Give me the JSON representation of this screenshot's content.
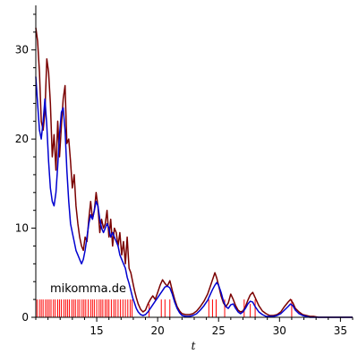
{
  "chart_data": {
    "type": "line",
    "title": "",
    "xlabel": "t",
    "ylabel": "",
    "xlim": [
      10,
      36
    ],
    "ylim": [
      0,
      35
    ],
    "x_ticks": [
      15,
      20,
      25,
      30,
      35
    ],
    "y_ticks": [
      0,
      10,
      20,
      30
    ],
    "grid": false,
    "watermark": "mikomma.de",
    "colors": {
      "dark_red": "#7a0000",
      "blue": "#0000d0",
      "spikes": "#ff0000"
    },
    "series": [
      {
        "color": "#7a0000",
        "x": [
          10.0,
          10.15,
          10.3,
          10.45,
          10.6,
          10.75,
          10.9,
          11.05,
          11.2,
          11.35,
          11.5,
          11.65,
          11.8,
          11.95,
          12.1,
          12.25,
          12.4,
          12.55,
          12.7,
          12.85,
          13.0,
          13.15,
          13.3,
          13.45,
          13.6,
          13.75,
          13.9,
          14.05,
          14.2,
          14.35,
          14.5,
          14.65,
          14.8,
          14.95,
          15.1,
          15.25,
          15.4,
          15.55,
          15.7,
          15.85,
          16.0,
          16.15,
          16.3,
          16.45,
          16.6,
          16.75,
          16.9,
          17.05,
          17.2,
          17.35,
          17.5,
          17.65,
          17.8,
          17.95,
          18.1,
          18.25,
          18.4,
          18.6,
          18.8,
          19.0,
          19.2,
          19.4,
          19.6,
          19.8,
          20.0,
          20.2,
          20.4,
          20.6,
          20.8,
          21.0,
          21.2,
          21.4,
          21.6,
          21.8,
          22.0,
          22.3,
          22.6,
          22.9,
          23.2,
          23.5,
          23.8,
          24.1,
          24.3,
          24.5,
          24.7,
          24.85,
          25.0,
          25.2,
          25.4,
          25.6,
          25.8,
          26.0,
          26.2,
          26.4,
          26.6,
          26.8,
          27.0,
          27.2,
          27.4,
          27.6,
          27.8,
          28.0,
          28.3,
          28.6,
          28.9,
          29.2,
          29.5,
          29.8,
          30.1,
          30.4,
          30.7,
          30.9,
          31.1,
          31.3,
          31.6,
          31.9,
          32.2,
          32.5,
          32.8,
          33.2,
          33.6,
          34.0,
          34.5,
          35.0,
          35.5,
          36.0
        ],
        "y": [
          32.5,
          31.0,
          27.5,
          22.0,
          21.0,
          23.0,
          29.0,
          27.5,
          24.0,
          18.0,
          20.5,
          16.5,
          22.0,
          18.0,
          21.5,
          24.5,
          26.0,
          19.5,
          20.0,
          17.5,
          14.5,
          16.0,
          12.5,
          10.5,
          9.0,
          8.0,
          7.5,
          9.0,
          8.5,
          11.0,
          13.0,
          11.0,
          12.0,
          14.0,
          12.5,
          9.5,
          11.0,
          10.0,
          10.5,
          12.0,
          9.0,
          11.0,
          8.0,
          10.0,
          9.5,
          8.0,
          9.5,
          7.0,
          8.5,
          6.0,
          9.0,
          5.5,
          5.0,
          4.0,
          3.0,
          2.2,
          1.5,
          0.9,
          0.6,
          0.8,
          1.5,
          2.0,
          2.4,
          2.0,
          2.8,
          3.6,
          4.2,
          3.8,
          3.5,
          4.1,
          3.0,
          2.0,
          1.2,
          0.7,
          0.4,
          0.3,
          0.3,
          0.4,
          0.7,
          1.2,
          1.8,
          2.6,
          3.4,
          4.2,
          5.0,
          4.4,
          3.6,
          2.4,
          1.6,
          1.2,
          1.6,
          2.6,
          2.0,
          1.3,
          0.8,
          0.6,
          0.7,
          1.2,
          1.9,
          2.5,
          2.8,
          2.2,
          1.3,
          0.7,
          0.4,
          0.2,
          0.2,
          0.3,
          0.6,
          1.2,
          1.7,
          2.0,
          1.6,
          1.0,
          0.6,
          0.3,
          0.2,
          0.1,
          0.1,
          0.0,
          0.0,
          0.0,
          0.0,
          0.0,
          0.0,
          0.0
        ]
      },
      {
        "color": "#0000d0",
        "x": [
          10.0,
          10.15,
          10.3,
          10.45,
          10.6,
          10.75,
          10.9,
          11.05,
          11.2,
          11.35,
          11.5,
          11.65,
          11.8,
          11.95,
          12.1,
          12.25,
          12.4,
          12.55,
          12.7,
          12.85,
          13.0,
          13.15,
          13.3,
          13.45,
          13.6,
          13.75,
          13.9,
          14.05,
          14.2,
          14.35,
          14.5,
          14.65,
          14.8,
          14.95,
          15.1,
          15.25,
          15.4,
          15.55,
          15.7,
          15.85,
          16.0,
          16.15,
          16.3,
          16.45,
          16.6,
          16.75,
          16.9,
          17.05,
          17.2,
          17.35,
          17.5,
          17.65,
          17.8,
          17.95,
          18.1,
          18.25,
          18.4,
          18.6,
          18.8,
          19.0,
          19.2,
          19.4,
          19.6,
          19.8,
          20.0,
          20.2,
          20.4,
          20.6,
          20.8,
          21.0,
          21.2,
          21.4,
          21.6,
          21.8,
          22.0,
          22.3,
          22.6,
          22.9,
          23.2,
          23.5,
          23.8,
          24.1,
          24.3,
          24.5,
          24.7,
          24.85,
          25.0,
          25.2,
          25.4,
          25.6,
          25.8,
          26.0,
          26.2,
          26.4,
          26.6,
          26.8,
          27.0,
          27.2,
          27.4,
          27.6,
          27.8,
          28.0,
          28.3,
          28.6,
          28.9,
          29.2,
          29.5,
          29.8,
          30.1,
          30.4,
          30.7,
          30.9,
          31.1,
          31.3,
          31.6,
          31.9,
          32.2,
          32.5,
          32.8,
          33.2,
          33.6,
          34.0,
          34.5,
          35.0,
          35.5,
          36.0
        ],
        "y": [
          27.0,
          24.0,
          21.0,
          20.0,
          22.0,
          24.5,
          21.5,
          17.5,
          14.5,
          13.0,
          12.5,
          14.0,
          17.0,
          20.5,
          23.0,
          23.5,
          21.0,
          16.5,
          13.0,
          10.5,
          9.5,
          8.5,
          7.5,
          7.0,
          6.5,
          6.0,
          6.5,
          7.5,
          9.0,
          10.5,
          11.5,
          11.0,
          12.0,
          13.0,
          12.5,
          11.0,
          10.0,
          9.5,
          10.0,
          10.5,
          10.0,
          9.0,
          9.5,
          9.0,
          8.5,
          8.0,
          7.0,
          6.5,
          6.0,
          5.5,
          4.5,
          3.8,
          3.0,
          2.2,
          1.6,
          1.0,
          0.6,
          0.3,
          0.2,
          0.3,
          0.6,
          1.0,
          1.4,
          1.8,
          2.2,
          2.6,
          3.0,
          3.4,
          3.5,
          3.3,
          2.6,
          1.7,
          1.0,
          0.5,
          0.2,
          0.1,
          0.1,
          0.2,
          0.4,
          0.8,
          1.3,
          1.9,
          2.5,
          3.1,
          3.6,
          3.9,
          3.6,
          2.8,
          1.8,
          1.2,
          1.0,
          1.4,
          1.5,
          1.0,
          0.6,
          0.4,
          0.6,
          1.0,
          1.5,
          1.8,
          1.7,
          1.2,
          0.6,
          0.3,
          0.1,
          0.1,
          0.1,
          0.2,
          0.4,
          0.8,
          1.2,
          1.5,
          1.3,
          0.8,
          0.4,
          0.2,
          0.1,
          0.0,
          0.0,
          0.0,
          0.0,
          0.0,
          0.0,
          0.0,
          0.0,
          0.0
        ]
      },
      {
        "color": "#ff0000",
        "type": "spikes",
        "x": [
          10.1,
          10.3,
          10.45,
          10.6,
          10.8,
          10.95,
          11.1,
          11.25,
          11.45,
          11.6,
          11.8,
          11.95,
          12.1,
          12.3,
          12.45,
          12.6,
          12.75,
          12.95,
          13.1,
          13.25,
          13.45,
          13.6,
          13.8,
          13.95,
          14.1,
          14.3,
          14.5,
          14.65,
          14.8,
          15.0,
          15.2,
          15.35,
          15.5,
          15.7,
          15.85,
          16.0,
          16.2,
          16.4,
          16.55,
          16.75,
          16.95,
          17.15,
          17.35,
          17.55,
          17.75,
          17.9,
          19.3,
          20.3,
          20.6,
          21.0,
          24.2,
          24.5,
          24.8,
          25.5,
          27.1,
          27.6,
          28.0,
          31.0
        ],
        "y": [
          2.0,
          2.0,
          2.0,
          2.0,
          2.0,
          2.0,
          2.0,
          2.0,
          2.0,
          2.0,
          2.0,
          2.0,
          2.0,
          2.0,
          2.0,
          2.0,
          2.0,
          2.0,
          2.0,
          2.0,
          2.0,
          2.0,
          2.0,
          2.0,
          2.0,
          2.0,
          2.0,
          2.0,
          2.0,
          2.0,
          2.0,
          2.0,
          2.0,
          2.0,
          2.0,
          2.0,
          2.0,
          2.0,
          2.0,
          2.0,
          2.0,
          2.0,
          2.0,
          2.0,
          2.0,
          2.0,
          1.5,
          2.0,
          2.0,
          2.0,
          2.0,
          2.0,
          2.0,
          2.0,
          2.0,
          1.5,
          2.0,
          2.0
        ]
      }
    ]
  }
}
